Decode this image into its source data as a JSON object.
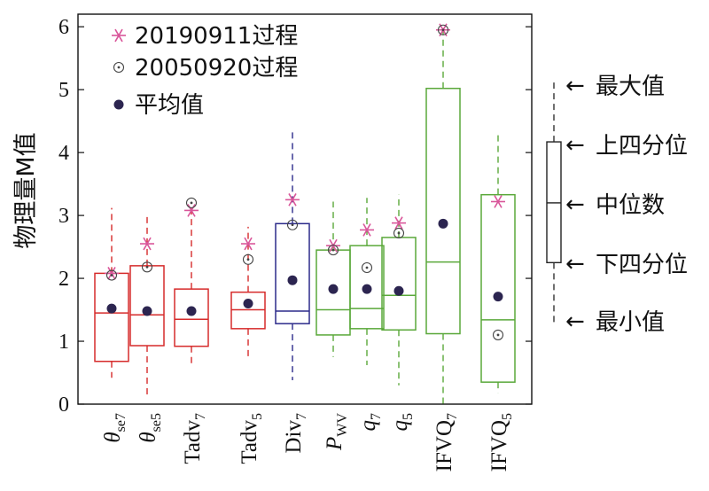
{
  "chart_data": {
    "type": "box",
    "title": "",
    "xlabel": "",
    "ylabel": "物理量M值",
    "ylim": [
      0,
      6.2
    ],
    "yticks": [
      0,
      1,
      2,
      3,
      4,
      5,
      6
    ],
    "grid": false,
    "legend_position": "top-left",
    "legend": [
      {
        "name": "20190911过程",
        "marker": "star",
        "color": "#d9569a"
      },
      {
        "name": "20050920过程",
        "marker": "dotted-circle",
        "color": "#444444"
      },
      {
        "name": "平均值",
        "marker": "dot",
        "color": "#2c2550"
      }
    ],
    "categories": [
      {
        "base": "θ",
        "sub": "se7",
        "italic": true,
        "color": "#d62b2b",
        "min": 0.42,
        "q1": 0.68,
        "median": 1.45,
        "q3": 2.08,
        "max": 3.12,
        "mean": 1.52,
        "p2019": 2.08,
        "p2005": 2.05
      },
      {
        "base": "θ",
        "sub": "se5",
        "italic": true,
        "color": "#d62b2b",
        "min": 0.15,
        "q1": 0.93,
        "median": 1.42,
        "q3": 2.2,
        "max": 3.03,
        "mean": 1.48,
        "p2019": 2.55,
        "p2005": 2.18
      },
      {
        "base": "Tadv",
        "sub": "7",
        "italic": false,
        "color": "#d62b2b",
        "min": 0.6,
        "q1": 0.92,
        "median": 1.35,
        "q3": 1.83,
        "max": 3.18,
        "mean": 1.48,
        "p2019": 3.08,
        "p2005": 3.2
      },
      {
        "base": "Tadv",
        "sub": "5",
        "italic": false,
        "color": "#d62b2b",
        "min": 0.7,
        "q1": 1.2,
        "median": 1.5,
        "q3": 1.78,
        "max": 2.82,
        "mean": 1.6,
        "p2019": 2.55,
        "p2005": 2.3
      },
      {
        "base": "Div",
        "sub": "7",
        "italic": false,
        "color": "#2c2a8a",
        "min": 0.38,
        "q1": 1.28,
        "median": 1.48,
        "q3": 2.87,
        "max": 4.33,
        "mean": 1.97,
        "p2019": 3.25,
        "p2005": 2.85
      },
      {
        "base": "P",
        "sub": "WV",
        "italic": true,
        "color": "#5aa83a",
        "min": 0.75,
        "q1": 1.1,
        "median": 1.5,
        "q3": 2.45,
        "max": 3.22,
        "mean": 1.83,
        "p2019": 2.52,
        "p2005": 2.45
      },
      {
        "base": "q",
        "sub": "7",
        "italic": true,
        "color": "#5aa83a",
        "min": 0.62,
        "q1": 1.2,
        "median": 1.52,
        "q3": 2.52,
        "max": 3.28,
        "mean": 1.83,
        "p2019": 2.77,
        "p2005": 2.17
      },
      {
        "base": "q",
        "sub": "5",
        "italic": true,
        "color": "#5aa83a",
        "min": 0.3,
        "q1": 1.18,
        "median": 1.73,
        "q3": 2.65,
        "max": 3.33,
        "mean": 1.8,
        "p2019": 2.88,
        "p2005": 2.72
      },
      {
        "base": "IFVQ",
        "sub": "7",
        "italic": false,
        "color": "#5aa83a",
        "min": 0.0,
        "q1": 1.12,
        "median": 2.26,
        "q3": 5.02,
        "max": 5.96,
        "mean": 2.87,
        "p2019": 5.95,
        "p2005": 5.95
      },
      {
        "base": "IFVQ",
        "sub": "5",
        "italic": false,
        "color": "#5aa83a",
        "min": 0.18,
        "q1": 0.35,
        "median": 1.34,
        "q3": 3.33,
        "max": 4.28,
        "mean": 1.71,
        "p2019": 3.22,
        "p2005": 1.1
      }
    ],
    "key": {
      "labels": {
        "max": "最大值",
        "q3": "上四分位",
        "median": "中位数",
        "q1": "下四分位",
        "min": "最小值"
      },
      "arrow": "←",
      "sample": {
        "min": 1.3,
        "q1": 2.25,
        "median": 3.2,
        "q3": 4.17,
        "max": 5.12
      }
    }
  }
}
